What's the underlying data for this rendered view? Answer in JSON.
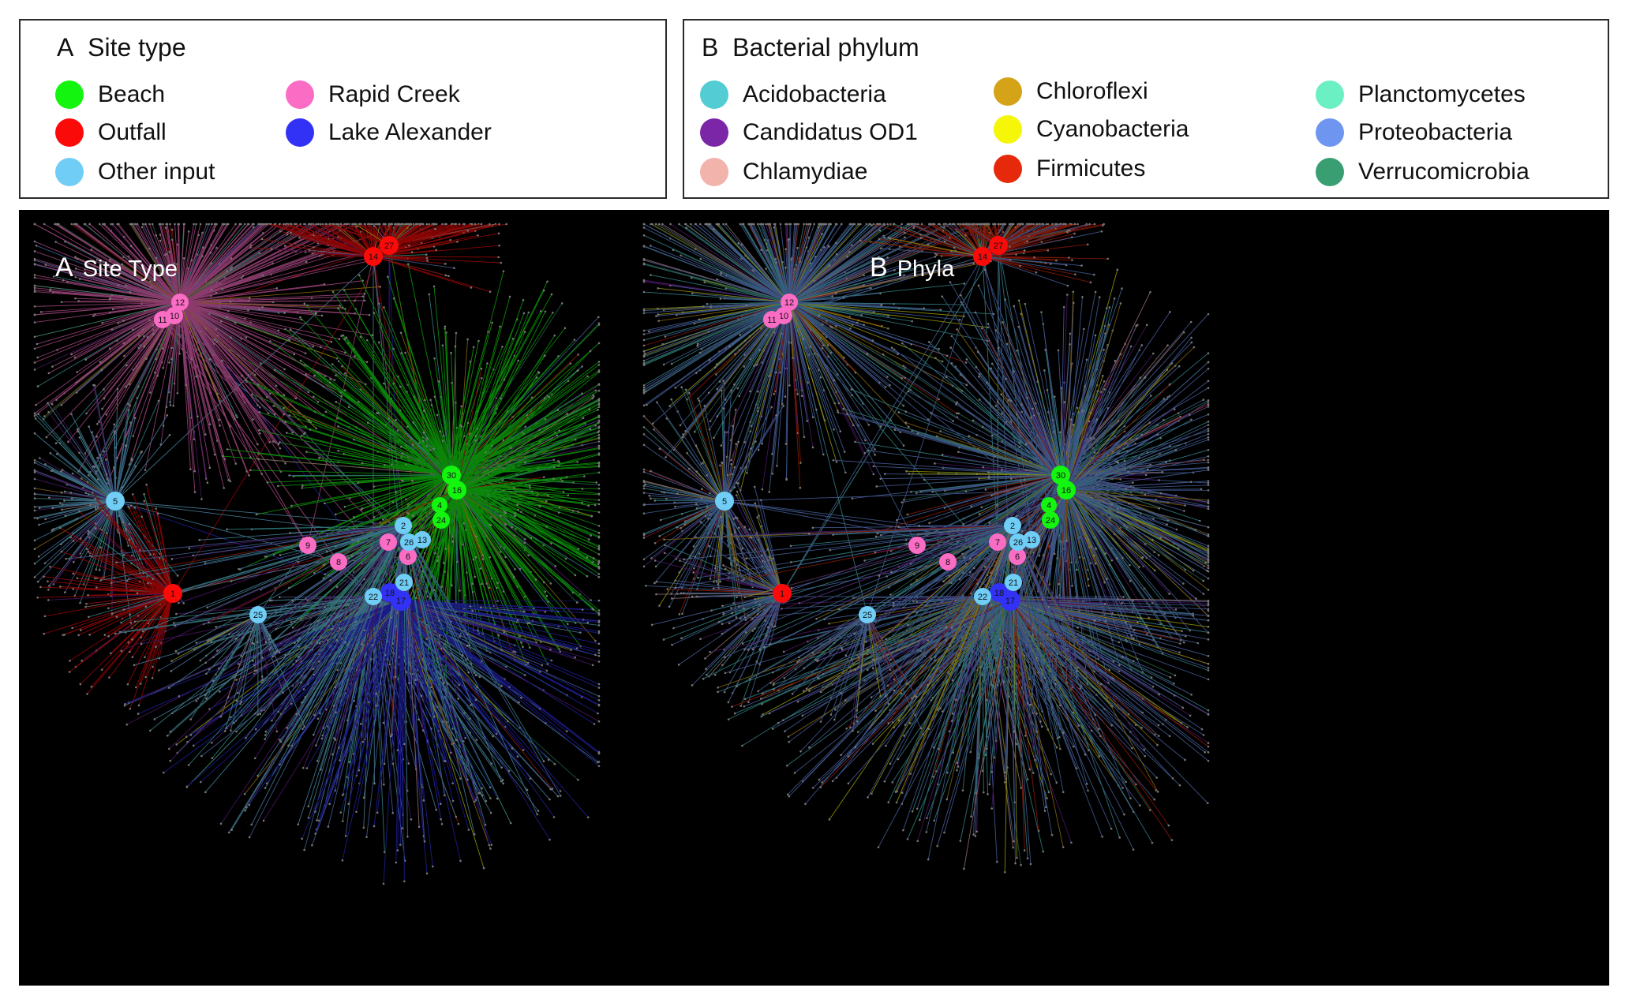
{
  "legends": {
    "site_type": {
      "letter": "A",
      "title": "Site type",
      "items": [
        {
          "label": "Beach",
          "color": "#13f50f"
        },
        {
          "label": "Outfall",
          "color": "#fb0a0a"
        },
        {
          "label": "Other input",
          "color": "#6fcdf6"
        },
        {
          "label": "Rapid Creek",
          "color": "#fb6cc4"
        },
        {
          "label": "Lake Alexander",
          "color": "#3232f6"
        }
      ]
    },
    "phylum": {
      "letter": "B",
      "title": "Bacterial phylum",
      "items": [
        {
          "label": "Acidobacteria",
          "color": "#53ccd3"
        },
        {
          "label": "Candidatus OD1",
          "color": "#7b26a6"
        },
        {
          "label": "Chlamydiae",
          "color": "#f2b3ac"
        },
        {
          "label": "Chloroflexi",
          "color": "#d4a317"
        },
        {
          "label": "Cyanobacteria",
          "color": "#f6f609"
        },
        {
          "label": "Firmicutes",
          "color": "#e6290b"
        },
        {
          "label": "Planctomycetes",
          "color": "#6af0c3"
        },
        {
          "label": "Proteobacteria",
          "color": "#6e96f1"
        },
        {
          "label": "Verrucomicrobia",
          "color": "#3a9e73"
        }
      ]
    }
  },
  "panels": [
    {
      "letter": "A",
      "title": "Site Type"
    },
    {
      "letter": "B",
      "title": "Phyla"
    }
  ],
  "nodes": [
    {
      "id": "1",
      "site": "Outfall"
    },
    {
      "id": "2",
      "site": "Other input"
    },
    {
      "id": "4",
      "site": "Beach"
    },
    {
      "id": "5",
      "site": "Other input"
    },
    {
      "id": "6",
      "site": "Rapid Creek"
    },
    {
      "id": "7",
      "site": "Rapid Creek"
    },
    {
      "id": "8",
      "site": "Rapid Creek"
    },
    {
      "id": "9",
      "site": "Rapid Creek"
    },
    {
      "id": "10",
      "site": "Rapid Creek"
    },
    {
      "id": "11",
      "site": "Rapid Creek"
    },
    {
      "id": "12",
      "site": "Rapid Creek"
    },
    {
      "id": "13",
      "site": "Other input"
    },
    {
      "id": "14",
      "site": "Outfall"
    },
    {
      "id": "16",
      "site": "Beach"
    },
    {
      "id": "17",
      "site": "Lake Alexander"
    },
    {
      "id": "18",
      "site": "Lake Alexander"
    },
    {
      "id": "21",
      "site": "Other input"
    },
    {
      "id": "22",
      "site": "Other input"
    },
    {
      "id": "24",
      "site": "Beach"
    },
    {
      "id": "25",
      "site": "Other input"
    },
    {
      "id": "26",
      "site": "Other input"
    },
    {
      "id": "27",
      "site": "Outfall"
    },
    {
      "id": "30",
      "site": "Beach"
    }
  ]
}
